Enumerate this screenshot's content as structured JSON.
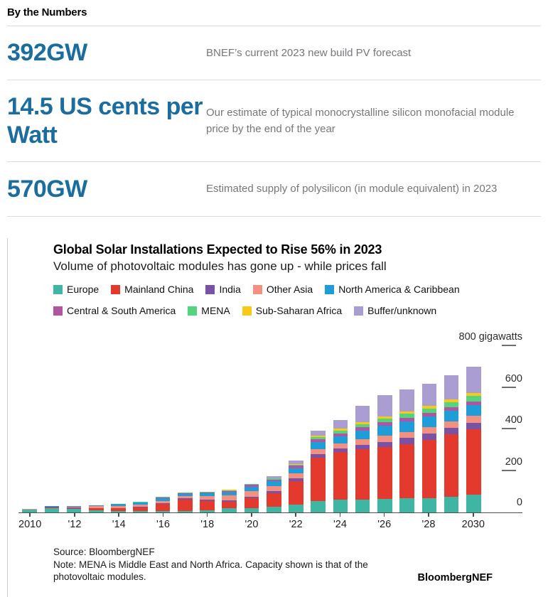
{
  "header": {
    "title": "By the Numbers"
  },
  "stats": [
    {
      "value": "392GW",
      "description": "BNEF’s current 2023 new build PV forecast"
    },
    {
      "value": "14.5 US cents per Watt",
      "description": "Our estimate of typical monocrystalline silicon monofacial module price by the end of the year"
    },
    {
      "value": "570GW",
      "description": "Estimated supply of polysilicon (in module equivalent) in 2023"
    }
  ],
  "accent_color": "#1a6d9e",
  "chart": {
    "title": "Global Solar Installations Expected to Rise 56% in 2023",
    "subtitle": "Volume of photovoltaic modules has gone up - while prices fall",
    "unit_label": "800 gigawatts",
    "source": "Source: BloombergNEF",
    "note": "Note: MENA is Middle East and North Africa. Capacity shown is that of the photovoltaic modules.",
    "brand": "BloombergNEF"
  },
  "chart_data": {
    "type": "bar",
    "stacked": true,
    "title": "Global Solar Installations Expected to Rise 56% in 2023",
    "subtitle": "Volume of photovoltaic modules has gone up - while prices fall",
    "ylabel": "gigawatts",
    "ylim": [
      0,
      800
    ],
    "yticks": [
      0,
      200,
      400,
      600,
      800
    ],
    "grid": false,
    "legend_position": "top",
    "x": [
      2010,
      2011,
      2012,
      2013,
      2014,
      2015,
      2016,
      2017,
      2018,
      2019,
      2020,
      2021,
      2022,
      2023,
      2024,
      2025,
      2026,
      2027,
      2028,
      2029,
      2030
    ],
    "x_tick_labels": [
      "2010",
      "",
      "'12",
      "",
      "'14",
      "",
      "'16",
      "",
      "'18",
      "",
      "'20",
      "",
      "'22",
      "",
      "'24",
      "",
      "'26",
      "",
      "'28",
      "",
      "2030"
    ],
    "series": [
      {
        "name": "Europe",
        "color": "#3fb6a4",
        "values": [
          14,
          22,
          17,
          10,
          7,
          8,
          7,
          8,
          11,
          22,
          22,
          28,
          38,
          55,
          60,
          63,
          65,
          68,
          70,
          75,
          85
        ]
      },
      {
        "name": "Mainland China",
        "color": "#e43a2e",
        "values": [
          1,
          3,
          5,
          11,
          13,
          16,
          34,
          53,
          44,
          30,
          48,
          65,
          112,
          210,
          230,
          240,
          250,
          262,
          280,
          300,
          314
        ]
      },
      {
        "name": "India",
        "color": "#7a52a5",
        "values": [
          0,
          1,
          1,
          1,
          1,
          2,
          4,
          9,
          8,
          7,
          4,
          10,
          15,
          17,
          18,
          22,
          25,
          28,
          29,
          31,
          31
        ]
      },
      {
        "name": "Other Asia",
        "color": "#f4907f",
        "values": [
          2,
          2,
          3,
          8,
          11,
          13,
          10,
          9,
          16,
          22,
          28,
          22,
          22,
          21,
          24,
          26,
          28,
          30,
          31,
          31,
          35
        ]
      },
      {
        "name": "North America & Caribbean",
        "color": "#1e9dd9",
        "values": [
          1,
          2,
          4,
          5,
          8,
          8,
          15,
          11,
          12,
          16,
          21,
          24,
          26,
          34,
          35,
          42,
          48,
          50,
          52,
          52,
          52
        ]
      },
      {
        "name": "Central & South America",
        "color": "#b0559f",
        "values": [
          0,
          0,
          0,
          0,
          1,
          2,
          2,
          3,
          4,
          5,
          9,
          10,
          13,
          14,
          14,
          16,
          17,
          17,
          17,
          17,
          17
        ]
      },
      {
        "name": "MENA",
        "color": "#55d47f",
        "values": [
          0,
          0,
          1,
          1,
          1,
          1,
          2,
          2,
          3,
          4,
          4,
          4,
          5,
          10,
          14,
          16,
          18,
          20,
          21,
          24,
          28
        ]
      },
      {
        "name": "Sub-Saharan Africa",
        "color": "#f8c918",
        "values": [
          0,
          0,
          0,
          0,
          1,
          1,
          1,
          1,
          1,
          2,
          1,
          2,
          2,
          10,
          8,
          9,
          10,
          12,
          13,
          14,
          14
        ]
      },
      {
        "name": "Buffer/unknown",
        "color": "#a99dd2",
        "values": [
          0,
          0,
          0,
          0,
          0,
          0,
          0,
          0,
          0,
          0,
          0,
          8,
          17,
          21,
          42,
          78,
          103,
          106,
          107,
          116,
          124
        ]
      }
    ]
  }
}
